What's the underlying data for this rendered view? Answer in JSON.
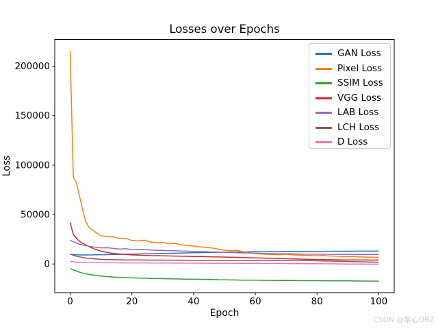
{
  "watermark": {
    "text": "CSDN @黎心ORZ",
    "color": "#c9ccd2"
  },
  "chart_data": {
    "type": "line",
    "title": "Losses over Epochs",
    "xlabel": "Epoch",
    "ylabel": "Loss",
    "xlim": [
      -5,
      105
    ],
    "ylim": [
      -29000,
      227100
    ],
    "xticks": [
      0,
      20,
      40,
      60,
      80,
      100
    ],
    "yticks": [
      0,
      50000,
      100000,
      150000,
      200000
    ],
    "grid": false,
    "legend_position": "upper right",
    "x": [
      0,
      1,
      2,
      3,
      4,
      5,
      6,
      8,
      10,
      12,
      14,
      16,
      18,
      20,
      22,
      24,
      26,
      28,
      30,
      32,
      34,
      36,
      38,
      40,
      42,
      44,
      46,
      48,
      50,
      52,
      54,
      56,
      58,
      60,
      62,
      64,
      66,
      68,
      70,
      72,
      74,
      76,
      78,
      80,
      82,
      84,
      86,
      88,
      90,
      92,
      94,
      96,
      98,
      100
    ],
    "series": [
      {
        "name": "GAN Loss",
        "color": "#1f77b4",
        "values": [
          9800,
          9500,
          9300,
          9200,
          9100,
          9100,
          9150,
          9250,
          9400,
          9500,
          9600,
          9700,
          9850,
          10000,
          10150,
          10300,
          10400,
          10500,
          10650,
          10800,
          10900,
          11050,
          11200,
          11350,
          11500,
          11600,
          11700,
          11800,
          11900,
          12000,
          12100,
          12200,
          12300,
          12400,
          12450,
          12500,
          12550,
          12600,
          12650,
          12700,
          12700,
          12750,
          12800,
          12800,
          12850,
          12850,
          12900,
          12900,
          12950,
          12950,
          13000,
          13000,
          13000,
          13050
        ]
      },
      {
        "name": "Pixel Loss",
        "color": "#ff7f0e",
        "values": [
          215500,
          87500,
          82000,
          69000,
          55000,
          43000,
          37500,
          32500,
          28500,
          27800,
          27400,
          25600,
          25900,
          23800,
          23300,
          24100,
          22300,
          21600,
          21900,
          20400,
          20800,
          19300,
          18800,
          18100,
          17300,
          16900,
          16100,
          15000,
          13900,
          13400,
          13700,
          12400,
          11400,
          10600,
          10100,
          9800,
          9500,
          9300,
          9900,
          9200,
          8900,
          8700,
          8600,
          8300,
          8600,
          8100,
          7900,
          7600,
          7400,
          7700,
          7100,
          7000,
          6900,
          6800
        ]
      },
      {
        "name": "SSIM Loss",
        "color": "#2ca02c",
        "values": [
          -4500,
          -6000,
          -7200,
          -8200,
          -9100,
          -9800,
          -10400,
          -11400,
          -12200,
          -12800,
          -13200,
          -13500,
          -13800,
          -14000,
          -14200,
          -14400,
          -14600,
          -14700,
          -14800,
          -15000,
          -15100,
          -15200,
          -15300,
          -15400,
          -15500,
          -15600,
          -15700,
          -15900,
          -16000,
          -16100,
          -16200,
          -16300,
          -16350,
          -16400,
          -16500,
          -16550,
          -16600,
          -16650,
          -16700,
          -16750,
          -16800,
          -16850,
          -16900,
          -16900,
          -16950,
          -17000,
          -17050,
          -17100,
          -17100,
          -17150,
          -17200,
          -17250,
          -17300,
          -17300
        ]
      },
      {
        "name": "VGG Loss",
        "color": "#d62728",
        "values": [
          42000,
          30000,
          26000,
          23000,
          21000,
          19500,
          17800,
          15000,
          13000,
          11600,
          10700,
          10100,
          9600,
          9200,
          8900,
          8700,
          8500,
          8400,
          8300,
          8150,
          8000,
          7900,
          7750,
          7600,
          7500,
          7400,
          7250,
          7100,
          7000,
          6850,
          6700,
          6500,
          6350,
          6200,
          6000,
          5850,
          5700,
          5500,
          5350,
          5150,
          5000,
          4850,
          4700,
          4600,
          4450,
          4350,
          4250,
          4150,
          4100,
          4200,
          4000,
          4100,
          3950,
          4100
        ]
      },
      {
        "name": "LAB Loss",
        "color": "#9467bd",
        "values": [
          24000,
          22500,
          21200,
          20200,
          19300,
          18600,
          18000,
          17000,
          16300,
          16500,
          15800,
          15100,
          15400,
          14600,
          14400,
          14700,
          14100,
          13900,
          13700,
          13500,
          13400,
          13100,
          12900,
          12700,
          12600,
          12400,
          12200,
          12000,
          11800,
          11600,
          11400,
          11200,
          11100,
          10900,
          10800,
          10600,
          10500,
          10400,
          10300,
          10200,
          10100,
          10000,
          9950,
          9900,
          9850,
          9800,
          9750,
          9700,
          9700,
          9650,
          9650,
          9600,
          9600,
          9600
        ]
      },
      {
        "name": "LCH Loss",
        "color": "#8c564b",
        "values": [
          10200,
          8800,
          7900,
          7200,
          6600,
          6100,
          5700,
          5100,
          4700,
          4500,
          4350,
          4250,
          4150,
          4100,
          4050,
          4000,
          3950,
          3950,
          3900,
          3900,
          3850,
          3850,
          3800,
          3800,
          3800,
          3750,
          3800,
          3750,
          3800,
          3750,
          3700,
          3750,
          3700,
          3700,
          3750,
          3700,
          3650,
          3700,
          3650,
          3600,
          3550,
          3450,
          3350,
          3250,
          3100,
          2950,
          2800,
          2650,
          2500,
          2350,
          2200,
          2050,
          1900,
          1800
        ]
      },
      {
        "name": "D Loss",
        "color": "#e377c2",
        "values": [
          2600,
          2200,
          1900,
          1700,
          1600,
          1500,
          1450,
          1350,
          1300,
          1250,
          1200,
          1150,
          1100,
          1100,
          1050,
          1050,
          1000,
          1000,
          950,
          950,
          900,
          900,
          850,
          850,
          800,
          800,
          750,
          750,
          700,
          700,
          650,
          650,
          600,
          600,
          550,
          550,
          500,
          500,
          450,
          400,
          400,
          350,
          300,
          250,
          200,
          150,
          100,
          50,
          0,
          -50,
          -100,
          -150,
          -200,
          -250
        ]
      }
    ]
  }
}
